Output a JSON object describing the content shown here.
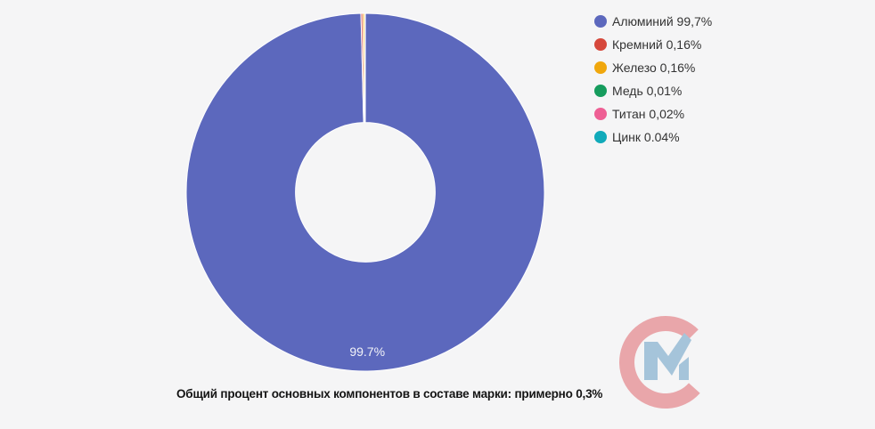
{
  "page": {
    "background_color": "#F5F5F6"
  },
  "chart_data": {
    "type": "pie",
    "subtype": "donut",
    "title": "",
    "categories": [
      "Алюминий",
      "Кремний",
      "Железо",
      "Медь",
      "Титан",
      "Цинк"
    ],
    "values": [
      99.7,
      0.16,
      0.16,
      0.01,
      0.02,
      0.04
    ],
    "unit": "%",
    "colors": [
      "#5C68BD",
      "#D6483C",
      "#F0A70D",
      "#169C5D",
      "#EE5F94",
      "#11AABA"
    ],
    "start_angle_deg": 0,
    "direction": "clockwise",
    "inner_radius_ratio": 0.39,
    "slice_label": "99.7%",
    "legend": {
      "position": "top-right",
      "items": [
        {
          "label": "Алюминий 99,7%",
          "color": "#5C68BD"
        },
        {
          "label": "Кремний 0,16%",
          "color": "#D6483C"
        },
        {
          "label": "Железо 0,16%",
          "color": "#F0A70D"
        },
        {
          "label": "Медь 0,01%",
          "color": "#169C5D"
        },
        {
          "label": "Титан 0,02%",
          "color": "#EE5F94"
        },
        {
          "label": "Цинк 0.04%",
          "color": "#11AABA"
        }
      ]
    },
    "caption": "Общий процент основных компонентов в составе марки: примерно 0,3%"
  },
  "logo": {
    "monogram": "СМ",
    "letter_c_color": "#E9A6AA",
    "letter_m_color": "#A5C4DA"
  }
}
